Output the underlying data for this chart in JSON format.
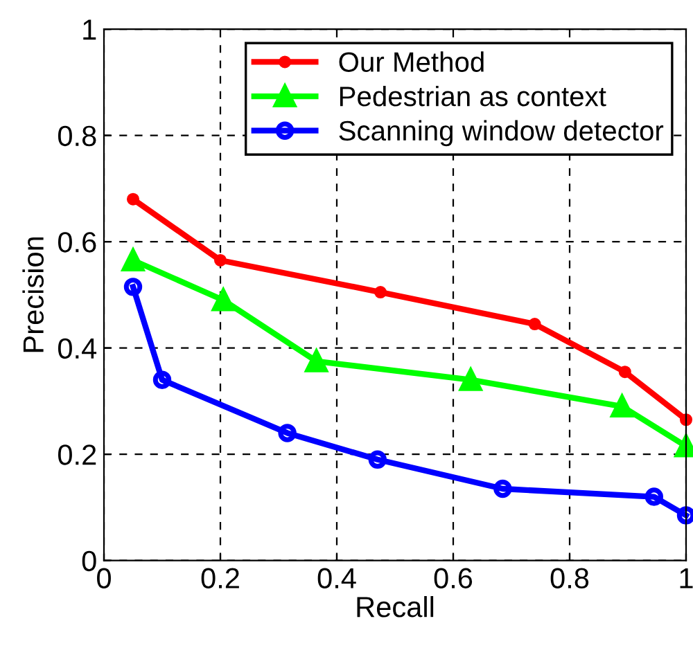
{
  "chart_data": {
    "type": "line",
    "xlabel": "Recall",
    "ylabel": "Precision",
    "xlim": [
      0,
      1
    ],
    "ylim": [
      0,
      1
    ],
    "xticks": [
      0,
      0.2,
      0.4,
      0.6,
      0.8,
      1
    ],
    "yticks": [
      0,
      0.2,
      0.4,
      0.6,
      0.8,
      1
    ],
    "grid": true,
    "legend": "top right",
    "series": [
      {
        "name": "Our Method",
        "color": "#ff0000",
        "marker": "circle",
        "x": [
          0.05,
          0.2,
          0.475,
          0.74,
          0.895,
          1
        ],
        "values": [
          0.68,
          0.565,
          0.505,
          0.445,
          0.355,
          0.265
        ]
      },
      {
        "name": "Pedestrian as context",
        "color": "#00ff00",
        "marker": "triangle",
        "x": [
          0.05,
          0.205,
          0.365,
          0.63,
          0.89,
          1
        ],
        "values": [
          0.565,
          0.49,
          0.375,
          0.34,
          0.29,
          0.215
        ]
      },
      {
        "name": "Scanning window detector",
        "color": "#0000ff",
        "marker": "circle",
        "x": [
          0.05,
          0.1,
          0.315,
          0.47,
          0.685,
          0.945,
          1
        ],
        "values": [
          0.515,
          0.34,
          0.24,
          0.19,
          0.135,
          0.12,
          0.085
        ]
      }
    ]
  }
}
